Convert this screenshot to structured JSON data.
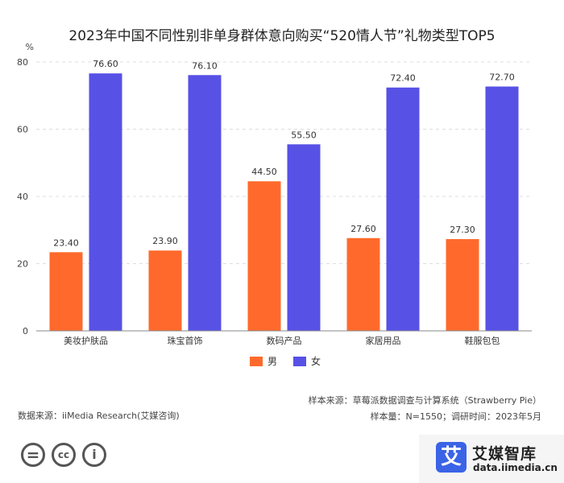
{
  "title": "2023年中国不同性别非单身群体意向购买“520情人节”礼物类型TOP5",
  "chart_data": {
    "type": "bar",
    "title": "2023年中国不同性别非单身群体意向购买“520情人节”礼物类型TOP5",
    "ylabel": "%",
    "xlabel": "",
    "ylim": [
      0,
      80
    ],
    "yticks": [
      0,
      20,
      40,
      60,
      80
    ],
    "grid": true,
    "legend_position": "bottom",
    "categories": [
      "美妆护肤品",
      "珠宝首饰",
      "数码产品",
      "家居用品",
      "鞋服包包"
    ],
    "series": [
      {
        "name": "男",
        "color": "#ff6a2c",
        "values": [
          23.4,
          23.9,
          44.5,
          27.6,
          27.3
        ],
        "labels": [
          "23.40",
          "23.90",
          "44.50",
          "27.60",
          "27.30"
        ]
      },
      {
        "name": "女",
        "color": "#5751e6",
        "values": [
          76.6,
          76.1,
          55.5,
          72.4,
          72.7
        ],
        "labels": [
          "76.60",
          "76.10",
          "55.50",
          "72.40",
          "72.70"
        ]
      }
    ]
  },
  "footer": {
    "data_source": "数据来源：iiMedia Research(艾媒咨询)",
    "sample_source": "样本来源：草莓派数据调查与计算系统（Strawberry Pie）",
    "sample_info": "样本量：N=1550；调研时间：2023年5月"
  },
  "license": {
    "equals_symbol": "=",
    "cc_symbol": "cc",
    "person_symbol": "i"
  },
  "brand": {
    "logo_char": "艾",
    "name": "艾媒智库",
    "url": "data.iimedia.cn"
  }
}
